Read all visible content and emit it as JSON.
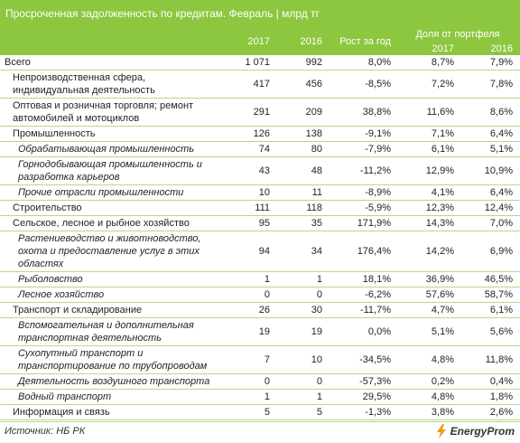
{
  "title": "Просроченная задолженность по кредитам. Февраль | млрд тг",
  "headers": {
    "y2017": "2017",
    "y2016": "2016",
    "growth": "Рост за год",
    "share_group": "Доля от портфеля",
    "share2017": "2017",
    "share2016": "2016"
  },
  "rows": [
    {
      "name": "Всего",
      "level": 0,
      "v2017": "1 071",
      "v2016": "992",
      "growth": "8,0%",
      "s2017": "8,7%",
      "s2016": "7,9%"
    },
    {
      "name": "Непроизводственная сфера, индивидуальная деятельность",
      "level": 1,
      "v2017": "417",
      "v2016": "456",
      "growth": "-8,5%",
      "s2017": "7,2%",
      "s2016": "7,8%"
    },
    {
      "name": "Оптовая и розничная торговля; ремонт автомобилей и мотоциклов",
      "level": 1,
      "v2017": "291",
      "v2016": "209",
      "growth": "38,8%",
      "s2017": "11,6%",
      "s2016": "8,6%"
    },
    {
      "name": "Промышленность",
      "level": 1,
      "v2017": "126",
      "v2016": "138",
      "growth": "-9,1%",
      "s2017": "7,1%",
      "s2016": "6,4%"
    },
    {
      "name": "Обрабатывающая промышленность",
      "level": 2,
      "v2017": "74",
      "v2016": "80",
      "growth": "-7,9%",
      "s2017": "6,1%",
      "s2016": "5,1%"
    },
    {
      "name": "Горнодобывающая промышленность и разработка карьеров",
      "level": 2,
      "v2017": "43",
      "v2016": "48",
      "growth": "-11,2%",
      "s2017": "12,9%",
      "s2016": "10,9%"
    },
    {
      "name": "Прочие отрасли промышленности",
      "level": 2,
      "v2017": "10",
      "v2016": "11",
      "growth": "-8,9%",
      "s2017": "4,1%",
      "s2016": "6,4%"
    },
    {
      "name": "Строительство",
      "level": 1,
      "v2017": "111",
      "v2016": "118",
      "growth": "-5,9%",
      "s2017": "12,3%",
      "s2016": "12,4%"
    },
    {
      "name": "Сельское, лесное и рыбное хозяйство",
      "level": 1,
      "v2017": "95",
      "v2016": "35",
      "growth": "171,9%",
      "s2017": "14,3%",
      "s2016": "7,0%"
    },
    {
      "name": "Растениеводство и животноводство, охота и предоставление услуг в этих областях",
      "level": 2,
      "v2017": "94",
      "v2016": "34",
      "growth": "176,4%",
      "s2017": "14,2%",
      "s2016": "6,9%"
    },
    {
      "name": "Рыболовство",
      "level": 2,
      "v2017": "1",
      "v2016": "1",
      "growth": "18,1%",
      "s2017": "36,9%",
      "s2016": "46,5%"
    },
    {
      "name": "Лесное хозяйство",
      "level": 2,
      "v2017": "0",
      "v2016": "0",
      "growth": "-6,2%",
      "s2017": "57,6%",
      "s2016": "58,7%"
    },
    {
      "name": "Транспорт и складирование",
      "level": 1,
      "v2017": "26",
      "v2016": "30",
      "growth": "-11,7%",
      "s2017": "4,7%",
      "s2016": "6,1%"
    },
    {
      "name": "Вспомогательная и дополнительная транспортная деятельность",
      "level": 2,
      "v2017": "19",
      "v2016": "19",
      "growth": "0,0%",
      "s2017": "5,1%",
      "s2016": "5,6%"
    },
    {
      "name": "Сухопутный транспорт и транспортирование по трубопроводам",
      "level": 2,
      "v2017": "7",
      "v2016": "10",
      "growth": "-34,5%",
      "s2017": "4,8%",
      "s2016": "11,8%"
    },
    {
      "name": "Деятельность воздушного транспорта",
      "level": 2,
      "v2017": "0",
      "v2016": "0",
      "growth": "-57,3%",
      "s2017": "0,2%",
      "s2016": "0,4%"
    },
    {
      "name": "Водный транспорт",
      "level": 2,
      "v2017": "1",
      "v2016": "1",
      "growth": "29,5%",
      "s2017": "4,8%",
      "s2016": "1,8%"
    },
    {
      "name": "Информация и связь",
      "level": 1,
      "v2017": "5",
      "v2016": "5",
      "growth": "-1,3%",
      "s2017": "3,8%",
      "s2016": "2,6%"
    }
  ],
  "footer": {
    "source": "Источник: НБ РК",
    "logo_text": "EnergyProm",
    "logo_icon": "energyprom-logo-icon"
  },
  "colors": {
    "header_bg": "#8dc63f",
    "row_border": "#b8d98a",
    "logo_orange": "#f39c12"
  }
}
